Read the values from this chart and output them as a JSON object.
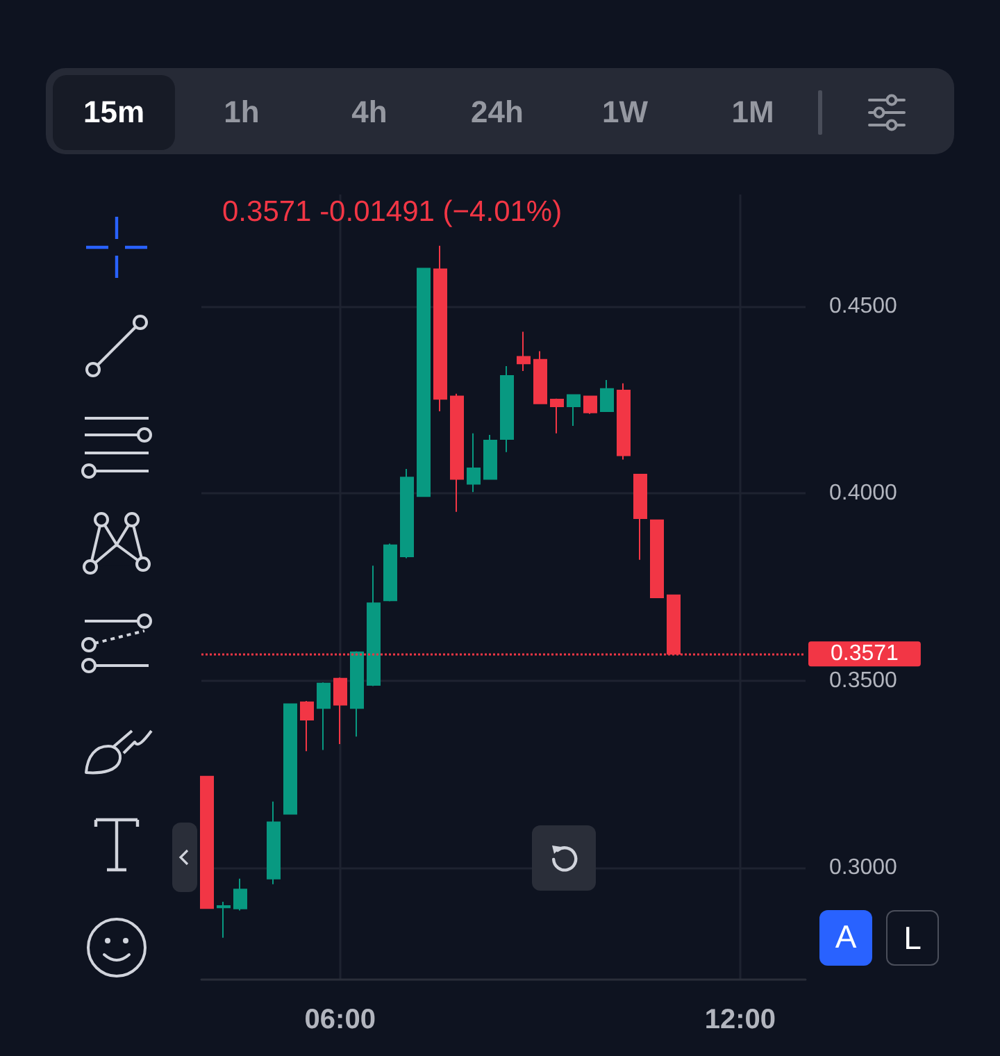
{
  "chart_data": {
    "type": "candlestick",
    "x": [
      4,
      4.25,
      4.5,
      5,
      5.25,
      5.5,
      5.75,
      6,
      6.25,
      6.5,
      6.75,
      7,
      7.25,
      7.5,
      7.75,
      8,
      8.25,
      8.5,
      8.75,
      9,
      9.25,
      9.5,
      9.75,
      10,
      10.25,
      10.5,
      10.75,
      11
    ],
    "ohlc": [
      [
        0.3243,
        0.3243,
        0.2891,
        0.2891
      ],
      [
        0.2893,
        0.2908,
        0.2812,
        0.2897
      ],
      [
        0.289,
        0.297,
        0.2885,
        0.2941
      ],
      [
        0.297,
        0.3176,
        0.2955,
        0.3121
      ],
      [
        0.3143,
        0.3437,
        0.3143,
        0.3437
      ],
      [
        0.3442,
        0.3445,
        0.3311,
        0.3395
      ],
      [
        0.3426,
        0.3495,
        0.3314,
        0.3492
      ],
      [
        0.3505,
        0.3508,
        0.333,
        0.3435
      ],
      [
        0.3426,
        0.3578,
        0.335,
        0.3576
      ],
      [
        0.3488,
        0.3807,
        0.3485,
        0.3707
      ],
      [
        0.3714,
        0.3866,
        0.3712,
        0.3862
      ],
      [
        0.3832,
        0.4066,
        0.3827,
        0.4043
      ],
      [
        0.3993,
        0.4602,
        0.3993,
        0.4602
      ],
      [
        0.46,
        0.4663,
        0.422,
        0.4253
      ],
      [
        0.426,
        0.4267,
        0.3951,
        0.4039
      ],
      [
        0.4026,
        0.4161,
        0.4004,
        0.4068
      ],
      [
        0.4039,
        0.4157,
        0.4037,
        0.4142
      ],
      [
        0.4146,
        0.4341,
        0.4111,
        0.4315
      ],
      [
        0.4366,
        0.4433,
        0.4328,
        0.4348
      ],
      [
        0.4358,
        0.4381,
        0.4241,
        0.4241
      ],
      [
        0.4252,
        0.4254,
        0.4161,
        0.4233
      ],
      [
        0.4233,
        0.4264,
        0.4181,
        0.4264
      ],
      [
        0.426,
        0.4262,
        0.4213,
        0.4217
      ],
      [
        0.422,
        0.4304,
        0.422,
        0.428
      ],
      [
        0.4276,
        0.4295,
        0.4091,
        0.4102
      ],
      [
        0.4051,
        0.4051,
        0.3823,
        0.3934
      ],
      [
        0.3929,
        0.3929,
        0.3722,
        0.3722
      ],
      [
        0.3728,
        0.3728,
        0.357,
        0.3571
      ]
    ],
    "colors": [
      "#f23645",
      "#089981",
      "#089981",
      "#089981",
      "#089981",
      "#f23645",
      "#089981",
      "#f23645",
      "#089981",
      "#089981",
      "#089981",
      "#089981",
      "#089981",
      "#f23645",
      "#f23645",
      "#089981",
      "#089981",
      "#089981",
      "#f23645",
      "#f23645",
      "#f23645",
      "#089981",
      "#f23645",
      "#089981",
      "#f23645",
      "#f23645",
      "#f23645",
      "#f23645"
    ],
    "xlim": [
      3.92,
      12.98
    ],
    "xticks": [
      {
        "value": 6,
        "label": "06:00"
      },
      {
        "value": 12,
        "label": "12:00"
      }
    ],
    "ylim": [
      0.27,
      0.48
    ],
    "yticks": [
      {
        "value": 0.3,
        "label": "0.3000"
      },
      {
        "value": 0.35,
        "label": "0.3500"
      },
      {
        "value": 0.4,
        "label": "0.4000"
      },
      {
        "value": 0.45,
        "label": "0.4500"
      }
    ],
    "grid": true,
    "ref_lines": [
      {
        "axis": "y",
        "value": 0.3571,
        "label": "0.3571",
        "color": "#f23645",
        "line_style": "dotted"
      }
    ],
    "annotations": [
      "0.3571 -0.01491 (−4.01%)",
      "15m",
      "1h",
      "4h",
      "24h",
      "1W",
      "1M",
      "A",
      "L"
    ]
  }
}
